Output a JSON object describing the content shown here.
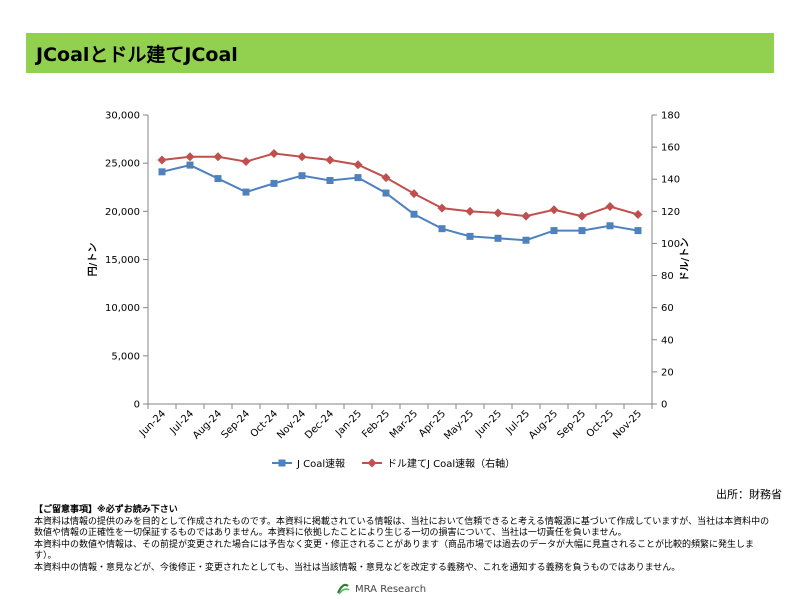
{
  "title": "JCoalとドル建てJCoal",
  "source": "出所：財務省",
  "notes": {
    "heading": "【ご留意事項】※必ずお読み下さい",
    "lines": [
      "本資料は情報の提供のみを目的として作成されたものです。本資料に掲載されている情報は、当社において信頼できると考える情報源に基づいて作成していますが、当社は本資料中の数値や情報の正確性を一切保証するものではありません。本資料に依拠したことにより生じる一切の損害について、当社は一切責任を負いません。",
      "本資料中の数値や情報は、その前提が変更された場合には予告なく変更・修正されることがあります（商品市場では過去のデータが大幅に見直されることが比較的頻繁に発生します）。",
      "本資料中の情報・意見などが、今後修正・変更されたとしても、当社は当該情報・意見などを改定する義務や、これを通知する義務を負うものではありません。"
    ]
  },
  "footer": {
    "brand": "MRA Research"
  },
  "chart_data": {
    "type": "line",
    "categories": [
      "Jun-24",
      "Jul-24",
      "Aug-24",
      "Sep-24",
      "Oct-24",
      "Nov-24",
      "Dec-24",
      "Jan-25",
      "Feb-25",
      "Mar-25",
      "Apr-25",
      "May-25",
      "Jun-25",
      "Jul-25",
      "Aug-25",
      "Sep-25",
      "Oct-25",
      "Nov-25"
    ],
    "y_left": {
      "label": "円/トン",
      "min": 0,
      "max": 30000,
      "step": 5000,
      "ticks": [
        "0",
        "5,000",
        "10,000",
        "15,000",
        "20,000",
        "25,000",
        "30,000"
      ]
    },
    "y_right": {
      "label": "ドル/トン",
      "min": 0,
      "max": 180,
      "step": 20,
      "ticks": [
        "0",
        "20",
        "40",
        "60",
        "80",
        "100",
        "120",
        "140",
        "160",
        "180"
      ]
    },
    "series": [
      {
        "name": "J Coal速報",
        "axis": "left",
        "color": "#4f81bd",
        "marker": "square",
        "values": [
          24100,
          24800,
          23400,
          22000,
          22900,
          23700,
          23200,
          23500,
          21900,
          19700,
          18200,
          17400,
          17200,
          17000,
          18000,
          18000,
          18500,
          18000
        ]
      },
      {
        "name": "ドル建てJ Coal速報（右軸）",
        "axis": "right",
        "color": "#c0504d",
        "marker": "diamond",
        "values": [
          152,
          154,
          154,
          151,
          156,
          154,
          152,
          149,
          141,
          131,
          122,
          120,
          119,
          117,
          121,
          117,
          123,
          118
        ]
      }
    ],
    "grid": false,
    "legend_position": "bottom"
  }
}
